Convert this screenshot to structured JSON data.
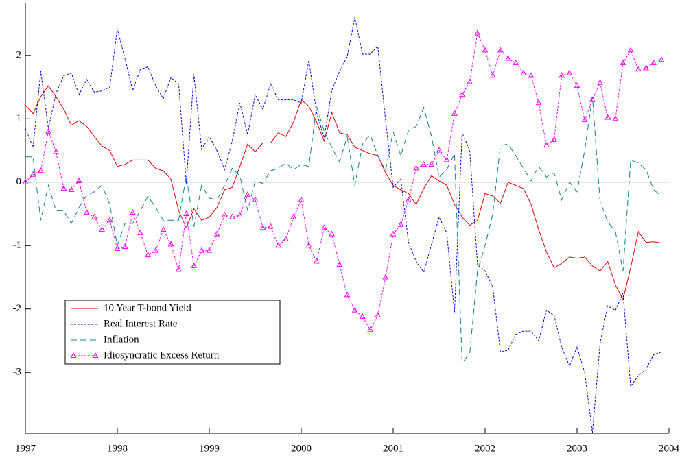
{
  "chart_data": {
    "type": "line",
    "x": [
      1997,
      1997.083,
      1997.167,
      1997.25,
      1997.333,
      1997.417,
      1997.5,
      1997.583,
      1997.667,
      1997.75,
      1997.833,
      1997.917,
      1998,
      1998.083,
      1998.167,
      1998.25,
      1998.333,
      1998.417,
      1998.5,
      1998.583,
      1998.667,
      1998.75,
      1998.833,
      1998.917,
      1999,
      1999.083,
      1999.167,
      1999.25,
      1999.333,
      1999.417,
      1999.5,
      1999.583,
      1999.667,
      1999.75,
      1999.833,
      1999.917,
      2000,
      2000.083,
      2000.167,
      2000.25,
      2000.333,
      2000.417,
      2000.5,
      2000.583,
      2000.667,
      2000.75,
      2000.833,
      2000.917,
      2001,
      2001.083,
      2001.167,
      2001.25,
      2001.333,
      2001.417,
      2001.5,
      2001.583,
      2001.667,
      2001.75,
      2001.833,
      2001.917,
      2002,
      2002.083,
      2002.167,
      2002.25,
      2002.333,
      2002.417,
      2002.5,
      2002.583,
      2002.667,
      2002.75,
      2002.833,
      2002.917,
      2003,
      2003.083,
      2003.167,
      2003.25,
      2003.333,
      2003.417,
      2003.5,
      2003.583,
      2003.667,
      2003.75,
      2003.833,
      2003.917
    ],
    "series": [
      {
        "name": "10 Year T-bond Yield",
        "color": "#e00000",
        "dash": "",
        "marker": false,
        "values": [
          1.22,
          1.08,
          1.35,
          1.52,
          1.35,
          1.15,
          0.9,
          0.97,
          0.88,
          0.72,
          0.57,
          0.5,
          0.25,
          0.28,
          0.35,
          0.35,
          0.35,
          0.22,
          0.18,
          0.05,
          -0.45,
          -0.72,
          -0.42,
          -0.6,
          -0.55,
          -0.4,
          -0.12,
          -0.08,
          0.25,
          0.6,
          0.48,
          0.62,
          0.62,
          0.78,
          0.72,
          0.95,
          1.3,
          1.2,
          0.95,
          0.65,
          1.1,
          0.78,
          0.75,
          0.55,
          0.5,
          0.45,
          0.42,
          0.15,
          -0.05,
          -0.12,
          -0.18,
          -0.35,
          -0.1,
          0.1,
          0.02,
          -0.05,
          -0.35,
          -0.55,
          -0.68,
          -0.6,
          -0.18,
          -0.22,
          -0.33,
          0.0,
          -0.05,
          -0.1,
          -0.35,
          -0.75,
          -1.1,
          -1.35,
          -1.28,
          -1.18,
          -1.2,
          -1.18,
          -1.32,
          -1.4,
          -1.25,
          -1.62,
          -1.85,
          -1.35,
          -0.78,
          -0.95,
          -0.94,
          -0.96
        ]
      },
      {
        "name": "Real Interest Rate",
        "color": "#0000d0",
        "dash": "3,2",
        "marker": false,
        "values": [
          0.85,
          0.55,
          1.75,
          0.85,
          1.4,
          1.68,
          1.72,
          1.38,
          1.62,
          1.42,
          1.44,
          1.5,
          2.42,
          1.95,
          1.45,
          1.78,
          1.82,
          1.52,
          1.32,
          1.65,
          1.55,
          -0.02,
          1.7,
          0.52,
          0.72,
          0.5,
          0.2,
          0.65,
          1.25,
          0.75,
          1.38,
          1.15,
          1.55,
          1.3,
          1.3,
          1.3,
          1.25,
          1.92,
          1.1,
          0.7,
          1.45,
          1.75,
          1.98,
          2.6,
          2.02,
          2.02,
          2.15,
          0.98,
          -0.08,
          0.05,
          -0.95,
          -1.25,
          -1.42,
          -0.98,
          -0.55,
          -0.8,
          -2.05,
          0.78,
          0.5,
          -1.3,
          -1.4,
          -1.65,
          -2.68,
          -2.65,
          -2.4,
          -2.35,
          -2.35,
          -2.5,
          -2.02,
          -2.1,
          -2.6,
          -2.9,
          -2.6,
          -3.0,
          -3.95,
          -2.55,
          -1.95,
          -2.02,
          -1.75,
          -3.22,
          -3.05,
          -2.95,
          -2.72,
          -2.68
        ]
      },
      {
        "name": "Inflation",
        "color": "#108080",
        "dash": "9,5",
        "marker": false,
        "values": [
          0.4,
          0.4,
          -0.6,
          -0.05,
          -0.45,
          -0.45,
          -0.65,
          -0.4,
          -0.2,
          -0.15,
          -0.05,
          -0.35,
          -1.0,
          -0.65,
          -0.65,
          -0.45,
          -0.22,
          -0.4,
          -0.6,
          -0.6,
          -0.6,
          0.1,
          -0.7,
          -0.05,
          -0.25,
          -0.28,
          -0.05,
          0.22,
          0.1,
          -0.45,
          0.02,
          -0.02,
          0.18,
          0.22,
          0.3,
          0.2,
          0.28,
          0.25,
          1.2,
          0.8,
          0.55,
          0.32,
          0.72,
          -0.05,
          0.6,
          0.75,
          0.42,
          0.18,
          0.8,
          0.42,
          0.82,
          0.88,
          1.18,
          0.72,
          0.08,
          0.2,
          0.45,
          -2.85,
          -2.7,
          -1.4,
          -1.0,
          -0.5,
          0.58,
          0.6,
          0.42,
          0.22,
          0.02,
          0.25,
          0.08,
          0.15,
          -0.28,
          0.0,
          -0.15,
          0.5,
          1.35,
          -0.3,
          -0.62,
          -0.78,
          -1.4,
          0.35,
          0.3,
          0.2,
          -0.12,
          -0.22
        ]
      },
      {
        "name": "Idiosyncratic Excess Return",
        "color": "#f000f0",
        "dash": "3,2",
        "marker": true,
        "values": [
          0.0,
          0.12,
          0.18,
          0.8,
          0.48,
          -0.1,
          -0.12,
          0.02,
          -0.48,
          -0.55,
          -0.75,
          -0.6,
          -1.05,
          -1.02,
          -0.48,
          -0.8,
          -1.15,
          -1.08,
          -0.75,
          -0.98,
          -1.38,
          -0.5,
          -1.32,
          -1.08,
          -1.08,
          -0.82,
          -0.52,
          -0.55,
          -0.52,
          -0.2,
          -0.28,
          -0.72,
          -0.7,
          -1.0,
          -0.9,
          -0.55,
          -0.28,
          -1.0,
          -1.25,
          -0.72,
          -0.82,
          -1.3,
          -1.78,
          -2.02,
          -2.12,
          -2.33,
          -2.1,
          -1.5,
          -0.82,
          -0.67,
          -0.28,
          0.22,
          0.28,
          0.28,
          0.5,
          0.35,
          1.08,
          1.38,
          1.58,
          2.35,
          2.08,
          1.68,
          2.08,
          1.95,
          1.88,
          1.72,
          1.68,
          1.25,
          0.58,
          0.67,
          1.68,
          1.72,
          1.52,
          0.98,
          1.3,
          1.57,
          1.02,
          1.0,
          1.88,
          2.08,
          1.78,
          1.8,
          1.88,
          1.93
        ]
      }
    ],
    "xlim": [
      1997,
      2004
    ],
    "xticks": [
      1997,
      1998,
      1999,
      2000,
      2001,
      2002,
      2003,
      2004
    ],
    "ylim": [
      -3.96,
      2.82
    ],
    "yticks": [
      -3,
      -2,
      -1,
      0,
      1,
      2
    ],
    "zero_line": true,
    "legend": "lower left"
  }
}
